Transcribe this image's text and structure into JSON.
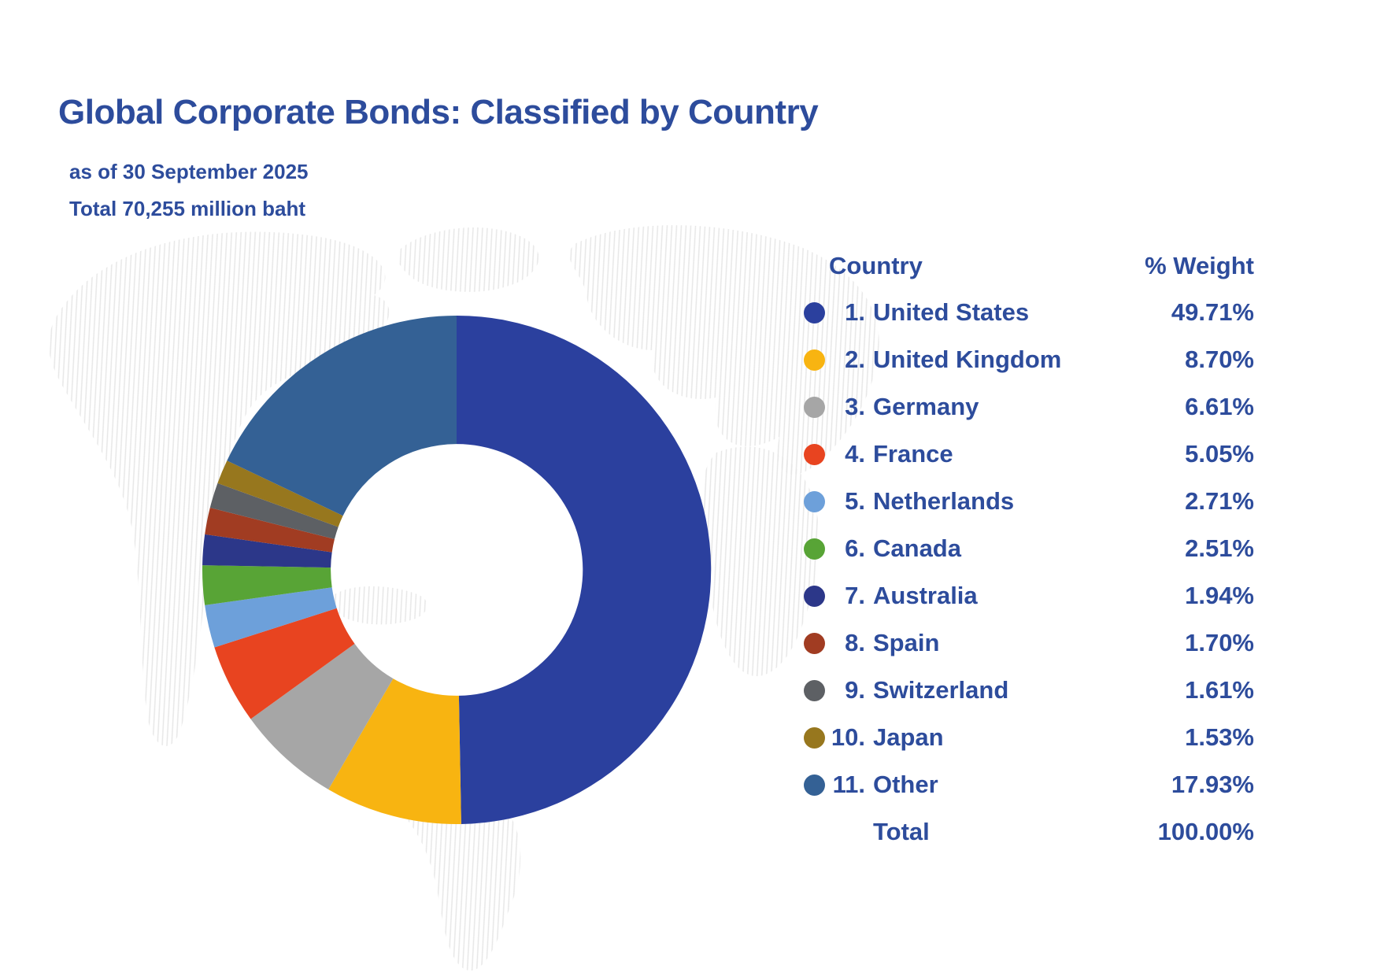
{
  "page": {
    "title": "Global Corporate Bonds: Classified by Country",
    "as_of_line": "as of  30 September 2025",
    "total_line": "Total 70,255 million baht"
  },
  "legend": {
    "country_header": "Country",
    "weight_header": "% Weight",
    "total_label": "Total",
    "total_value": "100.00%"
  },
  "colors": {
    "text_blue": "#2d4c9c",
    "background": "#ffffff",
    "map_hatch": "#cfcfcf"
  },
  "chart_data": {
    "type": "pie",
    "subtype": "donut",
    "title": "Global Corporate Bonds: Classified by Country",
    "as_of_date": "30 September 2025",
    "total_amount": "70,255 million baht",
    "start_angle_deg_from_top": 0,
    "direction": "clockwise",
    "inner_radius_ratio": 0.495,
    "legend_position": "right",
    "categories": [
      "United States",
      "United Kingdom",
      "Germany",
      "France",
      "Netherlands",
      "Canada",
      "Australia",
      "Spain",
      "Switzerland",
      "Japan",
      "Other"
    ],
    "values": [
      49.71,
      8.7,
      6.61,
      5.05,
      2.71,
      2.51,
      1.94,
      1.7,
      1.61,
      1.53,
      17.93
    ],
    "display_values": [
      "49.71%",
      "8.70%",
      "6.61%",
      "5.05%",
      "2.71%",
      "2.51%",
      "1.94%",
      "1.70%",
      "1.61%",
      "1.53%",
      "17.93%"
    ],
    "colors": [
      "#2b409e",
      "#f8b411",
      "#a6a6a6",
      "#e84420",
      "#6da0da",
      "#58a436",
      "#2c3789",
      "#a13c22",
      "#5d6064",
      "#97771e",
      "#346195"
    ],
    "total_label": "Total",
    "total_value": 100.0
  }
}
